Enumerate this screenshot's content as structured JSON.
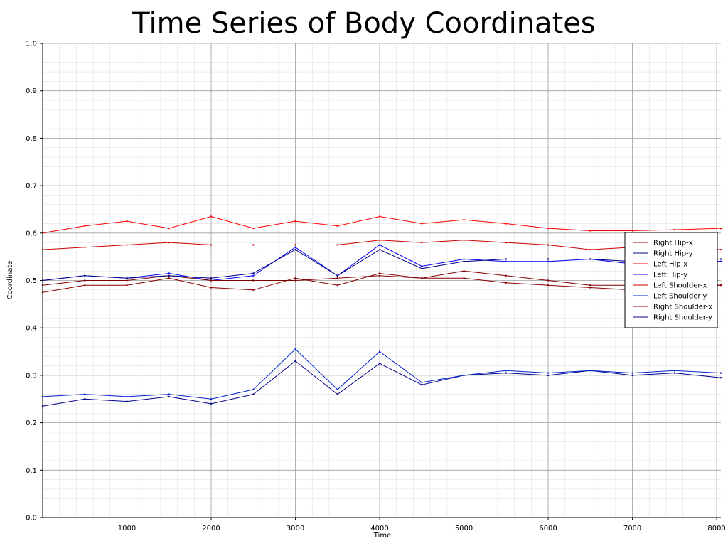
{
  "chart_data": {
    "type": "line",
    "title": "Time Series of Body Coordinates",
    "xlabel": "Time",
    "ylabel": "Coordinate",
    "xlim": [
      0,
      8050
    ],
    "ylim": [
      0.0,
      1.0
    ],
    "x_ticks": [
      1000,
      2000,
      3000,
      4000,
      5000,
      6000,
      7000,
      8000
    ],
    "y_ticks": [
      0.0,
      0.1,
      0.2,
      0.3,
      0.4,
      0.5,
      0.6,
      0.7,
      0.8,
      0.9,
      1.0
    ],
    "grid": true,
    "minor_grid": true,
    "legend_position": "right",
    "x": [
      0,
      500,
      1000,
      1500,
      2000,
      2500,
      3000,
      3500,
      4000,
      4500,
      5000,
      5500,
      6000,
      6500,
      7000,
      7500,
      8050
    ],
    "series": [
      {
        "name": "Right Hip-x",
        "color": "#8b0000",
        "values": [
          0.475,
          0.49,
          0.49,
          0.505,
          0.485,
          0.48,
          0.505,
          0.49,
          0.515,
          0.505,
          0.505,
          0.495,
          0.49,
          0.485,
          0.48,
          0.485,
          0.49
        ]
      },
      {
        "name": "Right Hip-y",
        "color": "#00008b",
        "values": [
          0.235,
          0.25,
          0.245,
          0.255,
          0.24,
          0.26,
          0.33,
          0.26,
          0.325,
          0.28,
          0.3,
          0.305,
          0.3,
          0.31,
          0.3,
          0.305,
          0.295
        ]
      },
      {
        "name": "Left Hip-x",
        "color": "#ff0000",
        "values": [
          0.6,
          0.615,
          0.625,
          0.61,
          0.635,
          0.61,
          0.625,
          0.615,
          0.635,
          0.62,
          0.628,
          0.62,
          0.61,
          0.605,
          0.605,
          0.607,
          0.61
        ]
      },
      {
        "name": "Left Hip-y",
        "color": "#0000ff",
        "values": [
          0.5,
          0.51,
          0.505,
          0.515,
          0.5,
          0.51,
          0.57,
          0.51,
          0.575,
          0.53,
          0.545,
          0.54,
          0.54,
          0.545,
          0.535,
          0.545,
          0.54
        ]
      },
      {
        "name": "Left Shoulder-x",
        "color": "#cc0000",
        "values": [
          0.565,
          0.57,
          0.575,
          0.58,
          0.575,
          0.575,
          0.575,
          0.575,
          0.585,
          0.58,
          0.585,
          0.58,
          0.575,
          0.565,
          0.57,
          0.57,
          0.565
        ]
      },
      {
        "name": "Left Shoulder-y",
        "color": "#0022cc",
        "values": [
          0.255,
          0.26,
          0.255,
          0.26,
          0.25,
          0.27,
          0.355,
          0.27,
          0.35,
          0.285,
          0.3,
          0.31,
          0.305,
          0.31,
          0.305,
          0.31,
          0.305
        ]
      },
      {
        "name": "Right Shoulder-x",
        "color": "#800000",
        "values": [
          0.49,
          0.5,
          0.5,
          0.51,
          0.5,
          0.5,
          0.5,
          0.505,
          0.51,
          0.505,
          0.52,
          0.51,
          0.5,
          0.49,
          0.49,
          0.495,
          0.49
        ]
      },
      {
        "name": "Right Shoulder-y",
        "color": "#000080",
        "values": [
          0.5,
          0.51,
          0.505,
          0.51,
          0.505,
          0.515,
          0.565,
          0.51,
          0.565,
          0.525,
          0.54,
          0.545,
          0.545,
          0.545,
          0.54,
          0.55,
          0.545
        ]
      }
    ]
  }
}
